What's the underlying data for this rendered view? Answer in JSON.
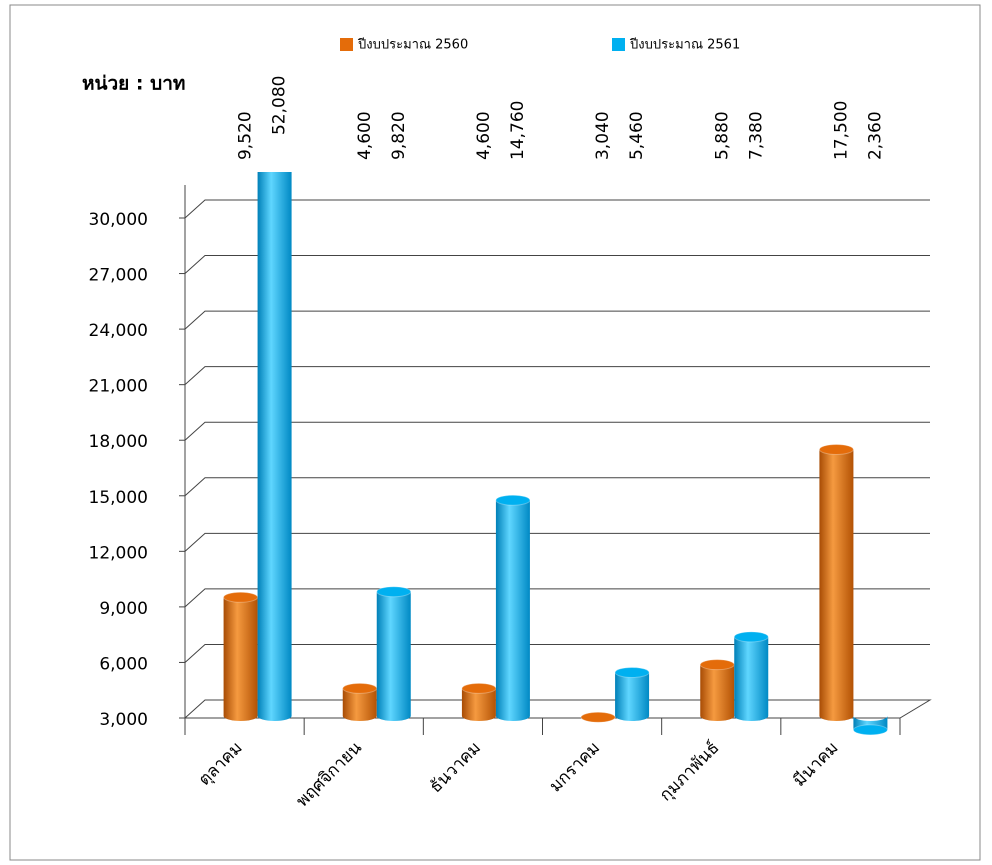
{
  "chart_data": {
    "type": "bar",
    "unit_label": "หน่วย : บาท",
    "categories": [
      "ตุลาคม",
      "พฤศจิกายน",
      "ธันวาคม",
      "มกราคม",
      "กุมภาพันธ์",
      "มีนาคม"
    ],
    "series": [
      {
        "name": "ปีงบประมาณ 2560",
        "color": "#e46c0a",
        "values": [
          9520,
          4600,
          4600,
          3040,
          5880,
          17500
        ],
        "value_labels": [
          "9,520",
          "4,600",
          "4,600",
          "3,040",
          "5,880",
          "17,500"
        ]
      },
      {
        "name": "ปีงบประมาณ 2561",
        "color": "#00b0f0",
        "values": [
          52080,
          9820,
          14760,
          5460,
          7380,
          2360
        ],
        "value_labels": [
          "52,080",
          "9,820",
          "14,760",
          "5,460",
          "7,380",
          "2,360"
        ]
      }
    ],
    "ylim": [
      3000,
      30000
    ],
    "yticks": [
      {
        "value": 3000,
        "label": "3,000"
      },
      {
        "value": 6000,
        "label": "6,000"
      },
      {
        "value": 9000,
        "label": "9,000"
      },
      {
        "value": 12000,
        "label": "12,000"
      },
      {
        "value": 15000,
        "label": "15,000"
      },
      {
        "value": 18000,
        "label": "18,000"
      },
      {
        "value": 21000,
        "label": "21,000"
      },
      {
        "value": 24000,
        "label": "24,000"
      },
      {
        "value": 27000,
        "label": "27,000"
      },
      {
        "value": 30000,
        "label": "30,000"
      }
    ],
    "grid": true
  }
}
